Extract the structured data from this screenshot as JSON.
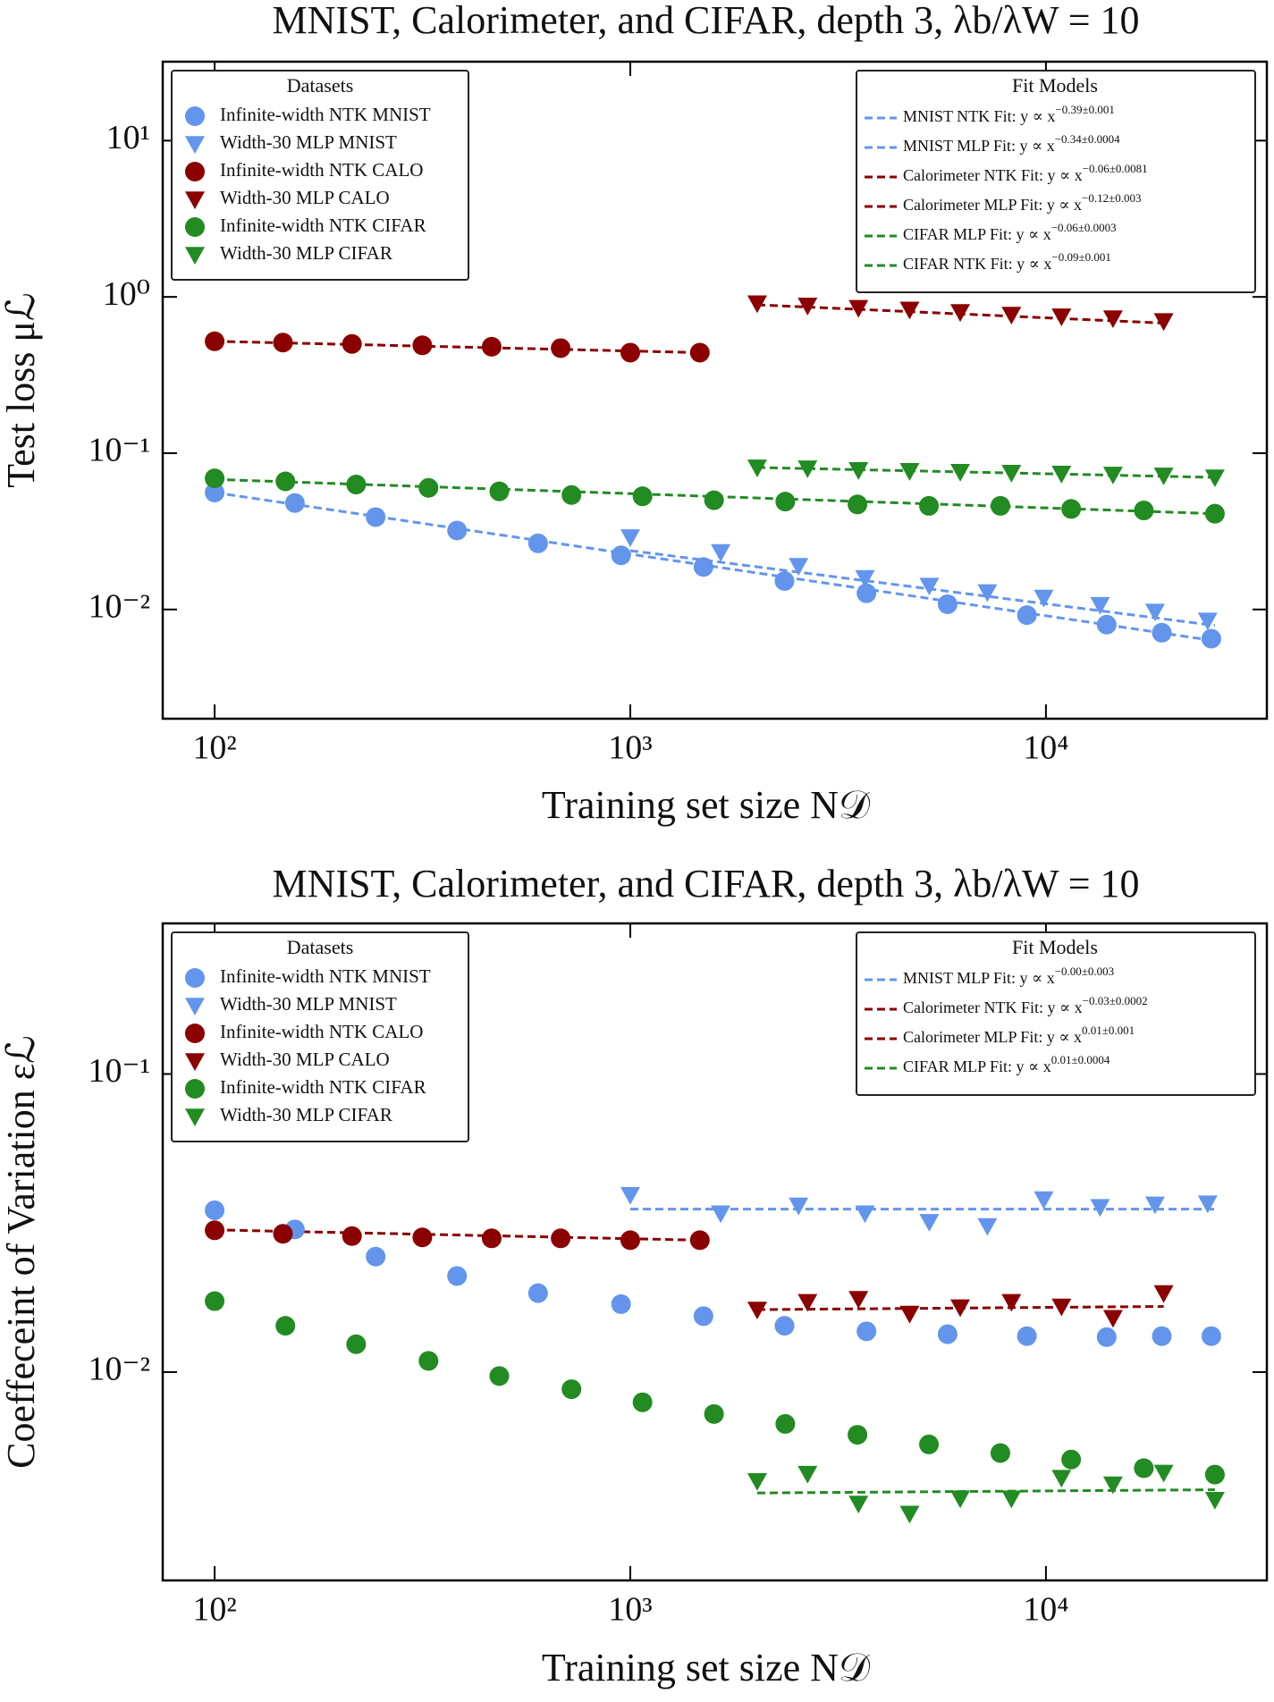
{
  "chart_data": [
    {
      "type": "scatter",
      "title": "MNIST, Calorimeter, and CIFAR, depth 3, λb/λW = 10",
      "xlabel": "Training set size N𝒟",
      "ylabel": "Test loss μℒ",
      "log_x": true,
      "log_y": true,
      "xlim": [
        75,
        34000
      ],
      "ylim": [
        0.002,
        32
      ],
      "xticks": [
        {
          "value": 100,
          "label": "10²"
        },
        {
          "value": 1000,
          "label": "10³"
        },
        {
          "value": 10000,
          "label": "10⁴"
        }
      ],
      "yticks": [
        {
          "value": 0.01,
          "label": "10⁻²"
        },
        {
          "value": 0.1,
          "label": "10⁻¹"
        },
        {
          "value": 1,
          "label": "10⁰"
        },
        {
          "value": 10,
          "label": "10¹"
        }
      ],
      "legend": {
        "title": "Datasets",
        "position": "upper left"
      },
      "series": [
        {
          "name": "Infinite-width NTK MNIST",
          "color": "#6495ed",
          "marker": "circle",
          "x": [
            100,
            156,
            244,
            383,
            600,
            950,
            1500,
            2350,
            3700,
            5800,
            9000,
            14000,
            19000,
            25000
          ],
          "values": [
            0.056,
            0.048,
            0.039,
            0.032,
            0.0265,
            0.0222,
            0.0187,
            0.0152,
            0.0127,
            0.0108,
            0.0092,
            0.008,
            0.0071,
            0.0065
          ]
        },
        {
          "name": "Width-30 MLP MNIST",
          "color": "#6495ed",
          "marker": "triangle",
          "x": [
            1000,
            1650,
            2540,
            3670,
            5240,
            7230,
            9880,
            13500,
            18300,
            24500
          ],
          "values": [
            0.029,
            0.0233,
            0.019,
            0.0159,
            0.0142,
            0.0129,
            0.0119,
            0.0107,
            0.0097,
            0.0085
          ]
        },
        {
          "name": "Infinite-width NTK CALO",
          "color": "#8b0000",
          "marker": "circle",
          "x": [
            100,
            146,
            214,
            316,
            464,
            680,
            1000,
            1470
          ],
          "values": [
            0.52,
            0.51,
            0.5,
            0.49,
            0.48,
            0.47,
            0.44,
            0.44
          ]
        },
        {
          "name": "Width-30 MLP CALO",
          "color": "#8b0000",
          "marker": "triangle",
          "x": [
            2020,
            2670,
            3540,
            4700,
            6220,
            8260,
            10900,
            14500,
            19200
          ],
          "values": [
            0.91,
            0.88,
            0.85,
            0.83,
            0.8,
            0.77,
            0.75,
            0.73,
            0.7
          ]
        },
        {
          "name": "Infinite-width NTK CIFAR",
          "color": "#228b22",
          "marker": "circle",
          "x": [
            100,
            148,
            219,
            327,
            484,
            722,
            1070,
            1590,
            2360,
            3520,
            5230,
            7770,
            11500,
            17200,
            25500
          ],
          "values": [
            0.069,
            0.066,
            0.063,
            0.06,
            0.057,
            0.054,
            0.053,
            0.05,
            0.049,
            0.047,
            0.046,
            0.046,
            0.044,
            0.043,
            0.041
          ]
        },
        {
          "name": "Width-30 MLP CIFAR",
          "color": "#228b22",
          "marker": "triangle",
          "x": [
            2020,
            2670,
            3540,
            4700,
            6220,
            8260,
            10900,
            14500,
            19200,
            25500
          ],
          "values": [
            0.081,
            0.08,
            0.078,
            0.077,
            0.076,
            0.075,
            0.074,
            0.073,
            0.072,
            0.07
          ]
        }
      ],
      "fit_legend": {
        "title": "Fit Models",
        "position": "upper right"
      },
      "fits": [
        {
          "name": "MNIST NTK Fit: y ∝ x−0.39±0.001",
          "color": "#6495ed",
          "x": [
            100,
            25500
          ],
          "values": [
            0.056,
            0.0063
          ]
        },
        {
          "name": "MNIST MLP Fit: y ∝ x−0.34±0.0004",
          "color": "#6495ed",
          "x": [
            1000,
            25500
          ],
          "values": [
            0.0238,
            0.0079
          ]
        },
        {
          "name": "Calorimeter NTK Fit: y ∝ x−0.06±0.0081",
          "color": "#8b0000",
          "x": [
            100,
            1470
          ],
          "values": [
            0.52,
            0.44
          ]
        },
        {
          "name": "Calorimeter MLP Fit: y ∝ x−0.12±0.003",
          "color": "#8b0000",
          "x": [
            2020,
            19200
          ],
          "values": [
            0.89,
            0.68
          ]
        },
        {
          "name": "CIFAR MLP Fit: y ∝ x−0.06±0.0003",
          "color": "#228b22",
          "x": [
            2020,
            25500
          ],
          "values": [
            0.081,
            0.07
          ]
        },
        {
          "name": "CIFAR NTK Fit: y ∝ x−0.09±0.001",
          "color": "#228b22",
          "x": [
            100,
            25500
          ],
          "values": [
            0.068,
            0.041
          ]
        }
      ]
    },
    {
      "type": "scatter",
      "title": "MNIST, Calorimeter, and CIFAR, depth 3, λb/λW = 10",
      "xlabel": "Training set size N𝒟",
      "ylabel": "Coeffeceint of Variation εℒ",
      "log_x": true,
      "log_y": true,
      "xlim": [
        75,
        34000
      ],
      "ylim": [
        0.002,
        0.32
      ],
      "xticks": [
        {
          "value": 100,
          "label": "10²"
        },
        {
          "value": 1000,
          "label": "10³"
        },
        {
          "value": 10000,
          "label": "10⁴"
        }
      ],
      "yticks": [
        {
          "value": 0.01,
          "label": "10⁻²"
        },
        {
          "value": 0.1,
          "label": "10⁻¹"
        }
      ],
      "legend": {
        "title": "Datasets",
        "position": "upper left"
      },
      "series": [
        {
          "name": "Infinite-width NTK MNIST",
          "color": "#6495ed",
          "marker": "circle",
          "x": [
            100,
            156,
            244,
            383,
            600,
            950,
            1500,
            2350,
            3700,
            5800,
            9000,
            14000,
            19000,
            25000
          ],
          "values": [
            0.0349,
            0.0301,
            0.0244,
            0.021,
            0.0184,
            0.0169,
            0.0154,
            0.0143,
            0.0137,
            0.0134,
            0.0132,
            0.0131,
            0.0132,
            0.0132
          ]
        },
        {
          "name": "Width-30 MLP MNIST",
          "color": "#6495ed",
          "marker": "triangle",
          "x": [
            1000,
            1650,
            2540,
            3670,
            5240,
            7230,
            9880,
            13500,
            18300,
            24500
          ],
          "values": [
            0.0393,
            0.0341,
            0.0362,
            0.0341,
            0.0319,
            0.0309,
            0.038,
            0.0358,
            0.0365,
            0.0368
          ]
        },
        {
          "name": "Infinite-width NTK CALO",
          "color": "#8b0000",
          "marker": "circle",
          "x": [
            100,
            146,
            214,
            316,
            464,
            680,
            1000,
            1470
          ],
          "values": [
            0.0299,
            0.0291,
            0.0286,
            0.0283,
            0.0281,
            0.0281,
            0.0277,
            0.0277
          ]
        },
        {
          "name": "Width-30 MLP CALO",
          "color": "#8b0000",
          "marker": "triangle",
          "x": [
            2020,
            2670,
            3540,
            4700,
            6220,
            8260,
            10900,
            14500,
            19200
          ],
          "values": [
            0.0162,
            0.0172,
            0.0176,
            0.0157,
            0.0165,
            0.0172,
            0.0166,
            0.0152,
            0.0184
          ]
        },
        {
          "name": "Infinite-width NTK CIFAR",
          "color": "#228b22",
          "marker": "circle",
          "x": [
            100,
            148,
            219,
            327,
            484,
            722,
            1070,
            1590,
            2360,
            3520,
            5230,
            7770,
            11500,
            17200,
            25500
          ],
          "values": [
            0.0173,
            0.0143,
            0.0124,
            0.0109,
            0.0097,
            0.00876,
            0.00792,
            0.00723,
            0.0067,
            0.00616,
            0.00572,
            0.00535,
            0.00509,
            0.00476,
            0.00453
          ]
        },
        {
          "name": "Width-30 MLP CIFAR",
          "color": "#228b22",
          "marker": "triangle",
          "x": [
            2020,
            2670,
            3540,
            4700,
            6220,
            8260,
            10900,
            14500,
            19200,
            25500
          ],
          "values": [
            0.00431,
            0.00456,
            0.00362,
            0.00335,
            0.00377,
            0.00377,
            0.00442,
            0.0042,
            0.0046,
            0.00373
          ]
        }
      ],
      "fit_legend": {
        "title": "Fit Models",
        "position": "upper right"
      },
      "fits": [
        {
          "name": "MNIST MLP Fit: y ∝ x−0.00±0.003",
          "color": "#6495ed",
          "x": [
            1000,
            25500
          ],
          "values": [
            0.0352,
            0.0352
          ]
        },
        {
          "name": "Calorimeter NTK Fit: y ∝ x−0.03±0.0002",
          "color": "#8b0000",
          "x": [
            100,
            1470
          ],
          "values": [
            0.03,
            0.0277
          ]
        },
        {
          "name": "Calorimeter MLP Fit: y ∝ x0.01±0.001",
          "color": "#8b0000",
          "x": [
            2020,
            19200
          ],
          "values": [
            0.0162,
            0.0166
          ]
        },
        {
          "name": "CIFAR MLP Fit: y ∝ x0.01±0.0004",
          "color": "#228b22",
          "x": [
            2020,
            25500
          ],
          "values": [
            0.00393,
            0.00403
          ]
        }
      ]
    }
  ]
}
